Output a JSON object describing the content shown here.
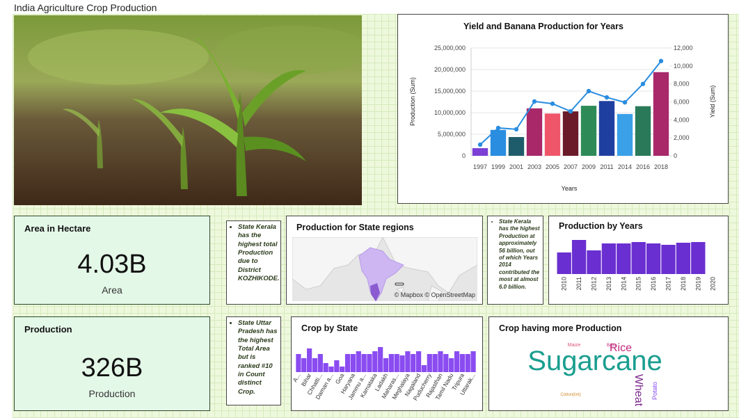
{
  "title": "India Agriculture Crop Production",
  "cards": [
    {
      "label": "Area in Hectare",
      "value": "4.03B",
      "caption": "Area"
    },
    {
      "label": "Production",
      "value": "326B",
      "caption": "Production"
    }
  ],
  "notes": [
    "State Kerala has the highest total Production due to District KOZHIKODE.",
    "State Kerala has the highest Production at approximately 56 billion, out of which Years 2014 contributed the most at almost 6.0 billion.",
    "State Uttar Pradesh has the highest Total Area but is ranked #10 in Count distinct Crop."
  ],
  "map": {
    "title": "Production for State regions",
    "attribution": "© Mapbox © OpenStreetMap"
  },
  "wordcloud": {
    "title": "Crop having more Production",
    "words": [
      {
        "text": "Sugarcane",
        "color": "#1a9e8f"
      },
      {
        "text": "Rice",
        "color": "#c2257a"
      },
      {
        "text": "Wheat",
        "color": "#7b2a8c"
      },
      {
        "text": "Maize",
        "color": "#e0567a"
      },
      {
        "text": "Potato",
        "color": "#8a4cf0"
      },
      {
        "text": "Cotton(lint)",
        "color": "#d08a2a"
      },
      {
        "text": "Bajra",
        "color": "#c2257a"
      }
    ]
  },
  "chart_data": [
    {
      "type": "bar_line",
      "title": "Yield and Banana Production for Years",
      "x_label": "Years",
      "y_label": "Production (Sum)",
      "y2_label": "Yield (Sum)",
      "categories": [
        "1997",
        "1999",
        "2001",
        "2003",
        "2005",
        "2007",
        "2009",
        "2011",
        "2014",
        "2016",
        "2018"
      ],
      "series": [
        {
          "colors": [
            "#7b3fd6",
            "#2a8de0",
            "#1f5c6b",
            "#a8286a",
            "#f0566a",
            "#6b1a2a",
            "#2e8b57",
            "#1f3fa0",
            "#3aa0e8",
            "#2a7a5a",
            "#a8286a"
          ],
          "values": [
            1770000,
            6000000,
            4350000,
            11000000,
            9800000,
            10300000,
            11600000,
            12700000,
            9700000,
            11500000,
            19400000
          ]
        },
        {
          "color": "#2a8de0",
          "axis": "y2",
          "values": [
            1240,
            3100,
            2950,
            6050,
            5800,
            4950,
            7200,
            6500,
            5950,
            8000,
            10550
          ]
        }
      ],
      "ylim": [
        0,
        25000000
      ],
      "yticks": [
        0,
        {
          "value": 5000000,
          "label": "5,000,000"
        },
        {
          "value": 10000000,
          "label": "10,000,000"
        },
        {
          "value": 15000000,
          "label": "15,000,000"
        },
        {
          "value": 20000000,
          "label": "20,000,000"
        },
        {
          "value": 25000000,
          "label": "25,000,000"
        }
      ],
      "y2lim": [
        0,
        12000
      ],
      "y2ticks": [
        0,
        {
          "value": 2000,
          "label": "2,000"
        },
        {
          "value": 4000,
          "label": "4,000"
        },
        {
          "value": 6000,
          "label": "6,000"
        },
        {
          "value": 8000,
          "label": "8,000"
        },
        {
          "value": 10000,
          "label": "10,000"
        },
        {
          "value": 12000,
          "label": "12,000"
        }
      ],
      "grid": true
    },
    {
      "type": "bar",
      "title": "Production by Years",
      "categories": [
        "2010",
        "2011",
        "2012",
        "2013",
        "2014",
        "2015",
        "2016",
        "2017",
        "2018",
        "2019",
        "2020"
      ],
      "values": [
        31,
        49,
        34,
        44,
        44,
        46,
        44,
        42,
        45,
        46,
        null
      ],
      "color": "#6a2fd0"
    },
    {
      "type": "bar",
      "title": "Crop by State",
      "categories": [
        "A...",
        null,
        "Bihar",
        null,
        "Chhatti...",
        null,
        "Daman a...",
        null,
        "Goa",
        null,
        "Haryana",
        null,
        "Jammu a...",
        null,
        "Karnataka",
        null,
        "Ladakh",
        null,
        "Maharas...",
        null,
        "Meghalaya",
        null,
        "Nagaland",
        null,
        "Puducherry",
        null,
        "Rajasthan",
        null,
        "Tamil Nadu",
        null,
        "Tripura",
        null,
        "Uttarak..."
      ],
      "values": [
        26,
        20,
        34,
        20,
        26,
        13,
        8,
        17,
        8,
        26,
        26,
        30,
        26,
        26,
        30,
        36,
        20,
        26,
        26,
        24,
        30,
        26,
        30,
        10,
        26,
        26,
        30,
        26,
        20,
        30,
        26,
        26,
        30
      ],
      "color": "#8a4cf0"
    }
  ]
}
